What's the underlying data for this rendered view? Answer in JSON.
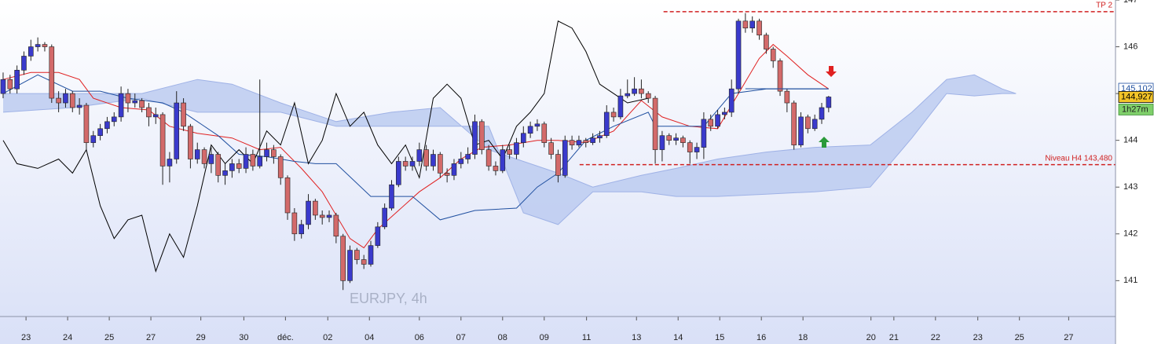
{
  "chart_data": {
    "type": "candlestick",
    "title": "EURJPY, 4h",
    "xlim": [
      -0.45,
      160.35
    ],
    "ylim": [
      140.25,
      147
    ],
    "yticks": [
      141,
      142,
      143,
      144,
      145,
      146,
      147
    ],
    "xticks": [
      {
        "value": 3.3,
        "label": "23"
      },
      {
        "value": 9.3,
        "label": "24"
      },
      {
        "value": 15.3,
        "label": "25"
      },
      {
        "value": 21.3,
        "label": "27"
      },
      {
        "value": 28.5,
        "label": "29"
      },
      {
        "value": 34.7,
        "label": "30"
      },
      {
        "value": 40.7,
        "label": "déc."
      },
      {
        "value": 46.8,
        "label": "02"
      },
      {
        "value": 52.8,
        "label": "04"
      },
      {
        "value": 60.0,
        "label": "06"
      },
      {
        "value": 66.0,
        "label": "07"
      },
      {
        "value": 72.0,
        "label": "08"
      },
      {
        "value": 78.0,
        "label": "09"
      },
      {
        "value": 84.1,
        "label": "11"
      },
      {
        "value": 91.3,
        "label": "13"
      },
      {
        "value": 97.3,
        "label": "14"
      },
      {
        "value": 103.3,
        "label": "15"
      },
      {
        "value": 109.3,
        "label": "16"
      },
      {
        "value": 115.3,
        "label": "18"
      },
      {
        "value": 125.1,
        "label": "20"
      },
      {
        "value": 128.4,
        "label": "21"
      },
      {
        "value": 134.4,
        "label": "22"
      },
      {
        "value": 140.5,
        "label": "23"
      },
      {
        "value": 146.5,
        "label": "25"
      },
      {
        "value": 153.6,
        "label": "27"
      }
    ],
    "up_color": "#3a3acc",
    "down_color": "#d36a6a",
    "candles": {
      "x": [
        0,
        1,
        2,
        3,
        4,
        5,
        6,
        7,
        8,
        9,
        10,
        11,
        12,
        13,
        14,
        15,
        16,
        17,
        18,
        19,
        20,
        21,
        22,
        23,
        24,
        25,
        26,
        27,
        28,
        29,
        30,
        31,
        32,
        33,
        34,
        35,
        36,
        37,
        38,
        39,
        40,
        41,
        42,
        43,
        44,
        45,
        46,
        47,
        48,
        49,
        50,
        51,
        52,
        53,
        54,
        55,
        56,
        57,
        58,
        59,
        60,
        61,
        62,
        63,
        64,
        65,
        66,
        67,
        68,
        69,
        70,
        71,
        72,
        73,
        74,
        75,
        76,
        77,
        78,
        79,
        80,
        81,
        82,
        83,
        84,
        85,
        86,
        87,
        88,
        89,
        90,
        91,
        92,
        93,
        94,
        95,
        96,
        97,
        98,
        99,
        100,
        101,
        102,
        103,
        104,
        105,
        106,
        107,
        108,
        109,
        110,
        111,
        112,
        113,
        114,
        115,
        116,
        117,
        118,
        119
      ],
      "open": [
        145.0,
        145.3,
        145.1,
        145.5,
        145.8,
        146.0,
        146.05,
        146.0,
        144.9,
        144.8,
        145.0,
        144.7,
        144.75,
        143.95,
        144.1,
        144.25,
        144.4,
        144.5,
        145.0,
        144.8,
        144.85,
        144.7,
        144.5,
        144.55,
        143.45,
        143.6,
        144.8,
        144.3,
        143.6,
        143.8,
        143.5,
        143.7,
        143.25,
        143.35,
        143.5,
        143.4,
        143.7,
        143.45,
        143.65,
        143.8,
        143.65,
        143.2,
        142.45,
        142.0,
        142.2,
        142.7,
        142.4,
        142.35,
        142.4,
        141.95,
        141.0,
        141.65,
        141.45,
        141.35,
        141.75,
        142.15,
        142.55,
        143.05,
        143.55,
        143.45,
        143.55,
        143.8,
        143.45,
        143.7,
        143.3,
        143.25,
        143.5,
        143.6,
        143.7,
        144.4,
        143.8,
        143.45,
        143.35,
        143.8,
        143.7,
        143.95,
        144.15,
        144.3,
        144.35,
        143.95,
        143.7,
        143.25,
        144.0,
        143.9,
        144.0,
        143.95,
        144.05,
        144.1,
        144.6,
        144.5,
        144.95,
        145.0,
        145.1,
        145.0,
        144.9,
        143.8,
        144.1,
        144.0,
        144.05,
        143.95,
        143.75,
        143.85,
        144.45,
        144.3,
        144.55,
        144.6,
        145.1,
        146.55,
        146.4,
        146.55,
        146.25,
        145.95,
        145.7,
        145.05,
        144.8,
        143.9,
        144.5,
        144.25,
        144.45,
        144.7
      ],
      "high": [
        145.45,
        145.4,
        145.6,
        145.9,
        146.15,
        146.2,
        146.1,
        146.05,
        145.05,
        145.1,
        145.05,
        144.9,
        144.8,
        144.2,
        144.35,
        144.5,
        144.6,
        145.15,
        145.1,
        145.0,
        144.9,
        144.8,
        144.7,
        144.6,
        143.75,
        145.05,
        144.9,
        144.35,
        143.95,
        143.85,
        143.85,
        143.75,
        143.5,
        143.6,
        143.6,
        143.85,
        143.8,
        145.3,
        143.95,
        143.9,
        143.7,
        143.25,
        142.55,
        142.3,
        142.85,
        142.75,
        142.5,
        142.5,
        142.45,
        142.0,
        141.75,
        141.7,
        141.55,
        141.85,
        142.25,
        142.65,
        143.15,
        143.65,
        143.65,
        143.65,
        143.95,
        143.9,
        143.8,
        143.75,
        143.4,
        143.6,
        143.75,
        143.85,
        144.55,
        144.45,
        143.9,
        143.55,
        143.9,
        143.9,
        144.05,
        144.3,
        144.4,
        144.45,
        144.4,
        144.05,
        143.8,
        144.1,
        144.1,
        144.1,
        144.05,
        144.15,
        144.2,
        144.75,
        144.7,
        145.1,
        145.3,
        145.35,
        145.3,
        145.05,
        144.95,
        144.2,
        144.15,
        144.15,
        144.1,
        144.0,
        143.95,
        144.6,
        144.55,
        144.65,
        144.7,
        145.3,
        146.6,
        146.72,
        146.65,
        146.6,
        146.3,
        146.0,
        145.75,
        145.1,
        144.85,
        144.6,
        144.55,
        144.55,
        144.8,
        144.95
      ],
      "low": [
        144.9,
        145.0,
        145.0,
        145.4,
        145.7,
        145.9,
        145.9,
        144.8,
        144.6,
        144.7,
        144.6,
        144.55,
        143.8,
        143.85,
        144.0,
        144.15,
        144.3,
        144.4,
        144.6,
        144.7,
        144.6,
        144.3,
        144.35,
        143.05,
        143.1,
        143.5,
        144.2,
        143.4,
        143.5,
        143.4,
        143.3,
        143.1,
        143.05,
        143.2,
        143.3,
        143.3,
        143.35,
        143.4,
        143.55,
        143.5,
        143.05,
        142.3,
        141.85,
        141.9,
        142.1,
        142.3,
        142.2,
        142.25,
        141.8,
        140.8,
        140.95,
        141.35,
        141.25,
        141.3,
        141.7,
        142.1,
        142.5,
        143.0,
        143.35,
        143.35,
        143.45,
        143.35,
        143.35,
        143.2,
        143.1,
        143.15,
        143.4,
        143.5,
        143.6,
        143.7,
        143.35,
        143.25,
        143.3,
        143.6,
        143.6,
        143.85,
        144.05,
        144.2,
        143.85,
        143.6,
        143.1,
        143.2,
        143.8,
        143.85,
        143.85,
        143.9,
        143.95,
        144.05,
        144.4,
        144.45,
        144.9,
        144.95,
        144.9,
        144.8,
        143.5,
        143.55,
        143.9,
        143.9,
        143.85,
        143.5,
        143.6,
        143.6,
        144.2,
        144.25,
        144.45,
        144.5,
        145.0,
        146.3,
        146.3,
        146.15,
        145.85,
        145.55,
        144.95,
        144.6,
        143.8,
        143.85,
        144.15,
        144.2,
        144.35,
        144.6
      ],
      "close": [
        145.3,
        145.1,
        145.5,
        145.8,
        146.0,
        146.05,
        146.0,
        144.9,
        144.8,
        145.0,
        144.7,
        144.75,
        143.95,
        144.1,
        144.25,
        144.4,
        144.5,
        145.0,
        144.8,
        144.85,
        144.7,
        144.5,
        144.55,
        143.45,
        143.6,
        144.8,
        144.3,
        143.6,
        143.8,
        143.5,
        143.7,
        143.25,
        143.35,
        143.5,
        143.4,
        143.7,
        143.45,
        143.65,
        143.8,
        143.65,
        143.2,
        142.45,
        142.0,
        142.2,
        142.7,
        142.4,
        142.35,
        142.4,
        141.95,
        141.0,
        141.65,
        141.45,
        141.35,
        141.75,
        142.15,
        142.55,
        143.05,
        143.55,
        143.45,
        143.55,
        143.8,
        143.45,
        143.7,
        143.3,
        143.25,
        143.5,
        143.6,
        143.7,
        144.4,
        143.8,
        143.45,
        143.35,
        143.8,
        143.7,
        143.95,
        144.15,
        144.3,
        144.35,
        143.95,
        143.7,
        143.25,
        144.0,
        143.9,
        144.0,
        143.95,
        144.05,
        144.1,
        144.6,
        144.5,
        144.95,
        145.0,
        145.1,
        145.0,
        144.9,
        143.8,
        144.1,
        144.0,
        144.05,
        143.95,
        143.75,
        143.85,
        144.45,
        144.3,
        144.55,
        144.6,
        145.1,
        146.55,
        146.4,
        146.55,
        146.25,
        145.95,
        145.7,
        145.05,
        144.8,
        143.9,
        144.5,
        144.25,
        144.45,
        144.7,
        144.927
      ]
    },
    "cloud": {
      "color": "#bccbf0",
      "x": [
        0,
        10,
        20,
        28,
        33,
        40,
        48,
        56,
        63,
        70,
        75,
        80,
        85,
        92,
        97,
        103,
        110,
        117,
        125,
        131,
        136,
        140,
        144,
        146
      ],
      "span_a": [
        145.0,
        145.0,
        145.0,
        145.3,
        145.2,
        144.8,
        144.4,
        144.6,
        144.7,
        143.8,
        143.55,
        143.3,
        143.0,
        143.25,
        143.4,
        143.6,
        143.75,
        143.85,
        143.9,
        144.6,
        145.3,
        145.4,
        145.1,
        145.0
      ],
      "span_b": [
        144.6,
        144.7,
        144.9,
        144.6,
        144.6,
        144.6,
        144.3,
        144.3,
        144.3,
        144.3,
        142.45,
        142.2,
        142.9,
        142.9,
        142.8,
        142.8,
        142.85,
        142.9,
        143.0,
        144.05,
        145.0,
        144.95,
        145.0,
        145.0
      ]
    },
    "lines": [
      {
        "color": "#e02020",
        "x": [
          0,
          4,
          8,
          11,
          13,
          17,
          21,
          24,
          28,
          33,
          37,
          40,
          43,
          46,
          50,
          52,
          54,
          57,
          60,
          63,
          66,
          69,
          73,
          77,
          80,
          84,
          88,
          92,
          95,
          99,
          103,
          106,
          109,
          111,
          113,
          116,
          119
        ],
        "values": [
          145.3,
          145.45,
          145.45,
          145.3,
          144.9,
          144.7,
          144.65,
          144.3,
          144.15,
          144.05,
          143.8,
          143.85,
          143.4,
          142.9,
          141.9,
          141.7,
          142.1,
          142.5,
          142.9,
          143.2,
          143.6,
          143.85,
          143.9,
          144.0,
          144.0,
          143.95,
          144.2,
          144.85,
          144.5,
          144.3,
          144.25,
          145.0,
          145.75,
          146.05,
          145.8,
          145.4,
          145.1
        ]
      },
      {
        "color": "#2050a0",
        "x": [
          0,
          5,
          10,
          14,
          18,
          23,
          26,
          31,
          34,
          38,
          42,
          45,
          48,
          53,
          59,
          63,
          68,
          74,
          77,
          80,
          84,
          88,
          93,
          94,
          101,
          105,
          110,
          119
        ],
        "values": [
          145.0,
          145.4,
          145.05,
          145.05,
          144.9,
          144.8,
          144.6,
          144.1,
          143.7,
          143.65,
          143.55,
          143.5,
          143.5,
          142.8,
          142.8,
          142.3,
          142.5,
          142.55,
          143.0,
          143.3,
          144.0,
          144.3,
          144.6,
          144.3,
          144.3,
          145.0,
          145.1,
          145.1
        ]
      },
      {
        "color": "#000000",
        "x": [
          0,
          2,
          5,
          8,
          10,
          12,
          14,
          16,
          18,
          20,
          22,
          24,
          26,
          28,
          30,
          32,
          34,
          36,
          38,
          40,
          42,
          44,
          46,
          48,
          50,
          52,
          54,
          56,
          58,
          60,
          62,
          64,
          66,
          68,
          70,
          72,
          74,
          76,
          78,
          80,
          82,
          84,
          86,
          88,
          90,
          93
        ],
        "values": [
          144.0,
          143.5,
          143.4,
          143.6,
          143.3,
          143.8,
          142.6,
          141.9,
          142.3,
          142.4,
          141.2,
          142.0,
          141.5,
          142.6,
          143.9,
          143.5,
          143.8,
          143.5,
          144.2,
          143.9,
          144.8,
          143.5,
          144.0,
          145.0,
          144.3,
          144.6,
          143.9,
          143.5,
          143.9,
          143.2,
          144.9,
          145.2,
          144.9,
          143.9,
          144.0,
          143.6,
          144.3,
          144.6,
          145.0,
          146.55,
          146.4,
          145.9,
          145.2,
          145.0,
          144.8,
          144.9
        ]
      }
    ],
    "levels": [
      {
        "value": 146.75,
        "label": "TP 2",
        "x_from": 95.2,
        "color": "#d02020"
      },
      {
        "value": 143.48,
        "label": "Niveau H4 143,480",
        "x_from": 83.1,
        "color": "#d02020"
      }
    ],
    "price_labels": [
      {
        "value": 145.102,
        "label": "145,102",
        "x_from": 107,
        "x_to": 119,
        "color": "#2050a0",
        "fill": "#ffffff"
      },
      {
        "value": 144.927,
        "label": "144,927",
        "color": "#000000",
        "fill": "#f3c428"
      }
    ],
    "timer": "1h27m"
  }
}
